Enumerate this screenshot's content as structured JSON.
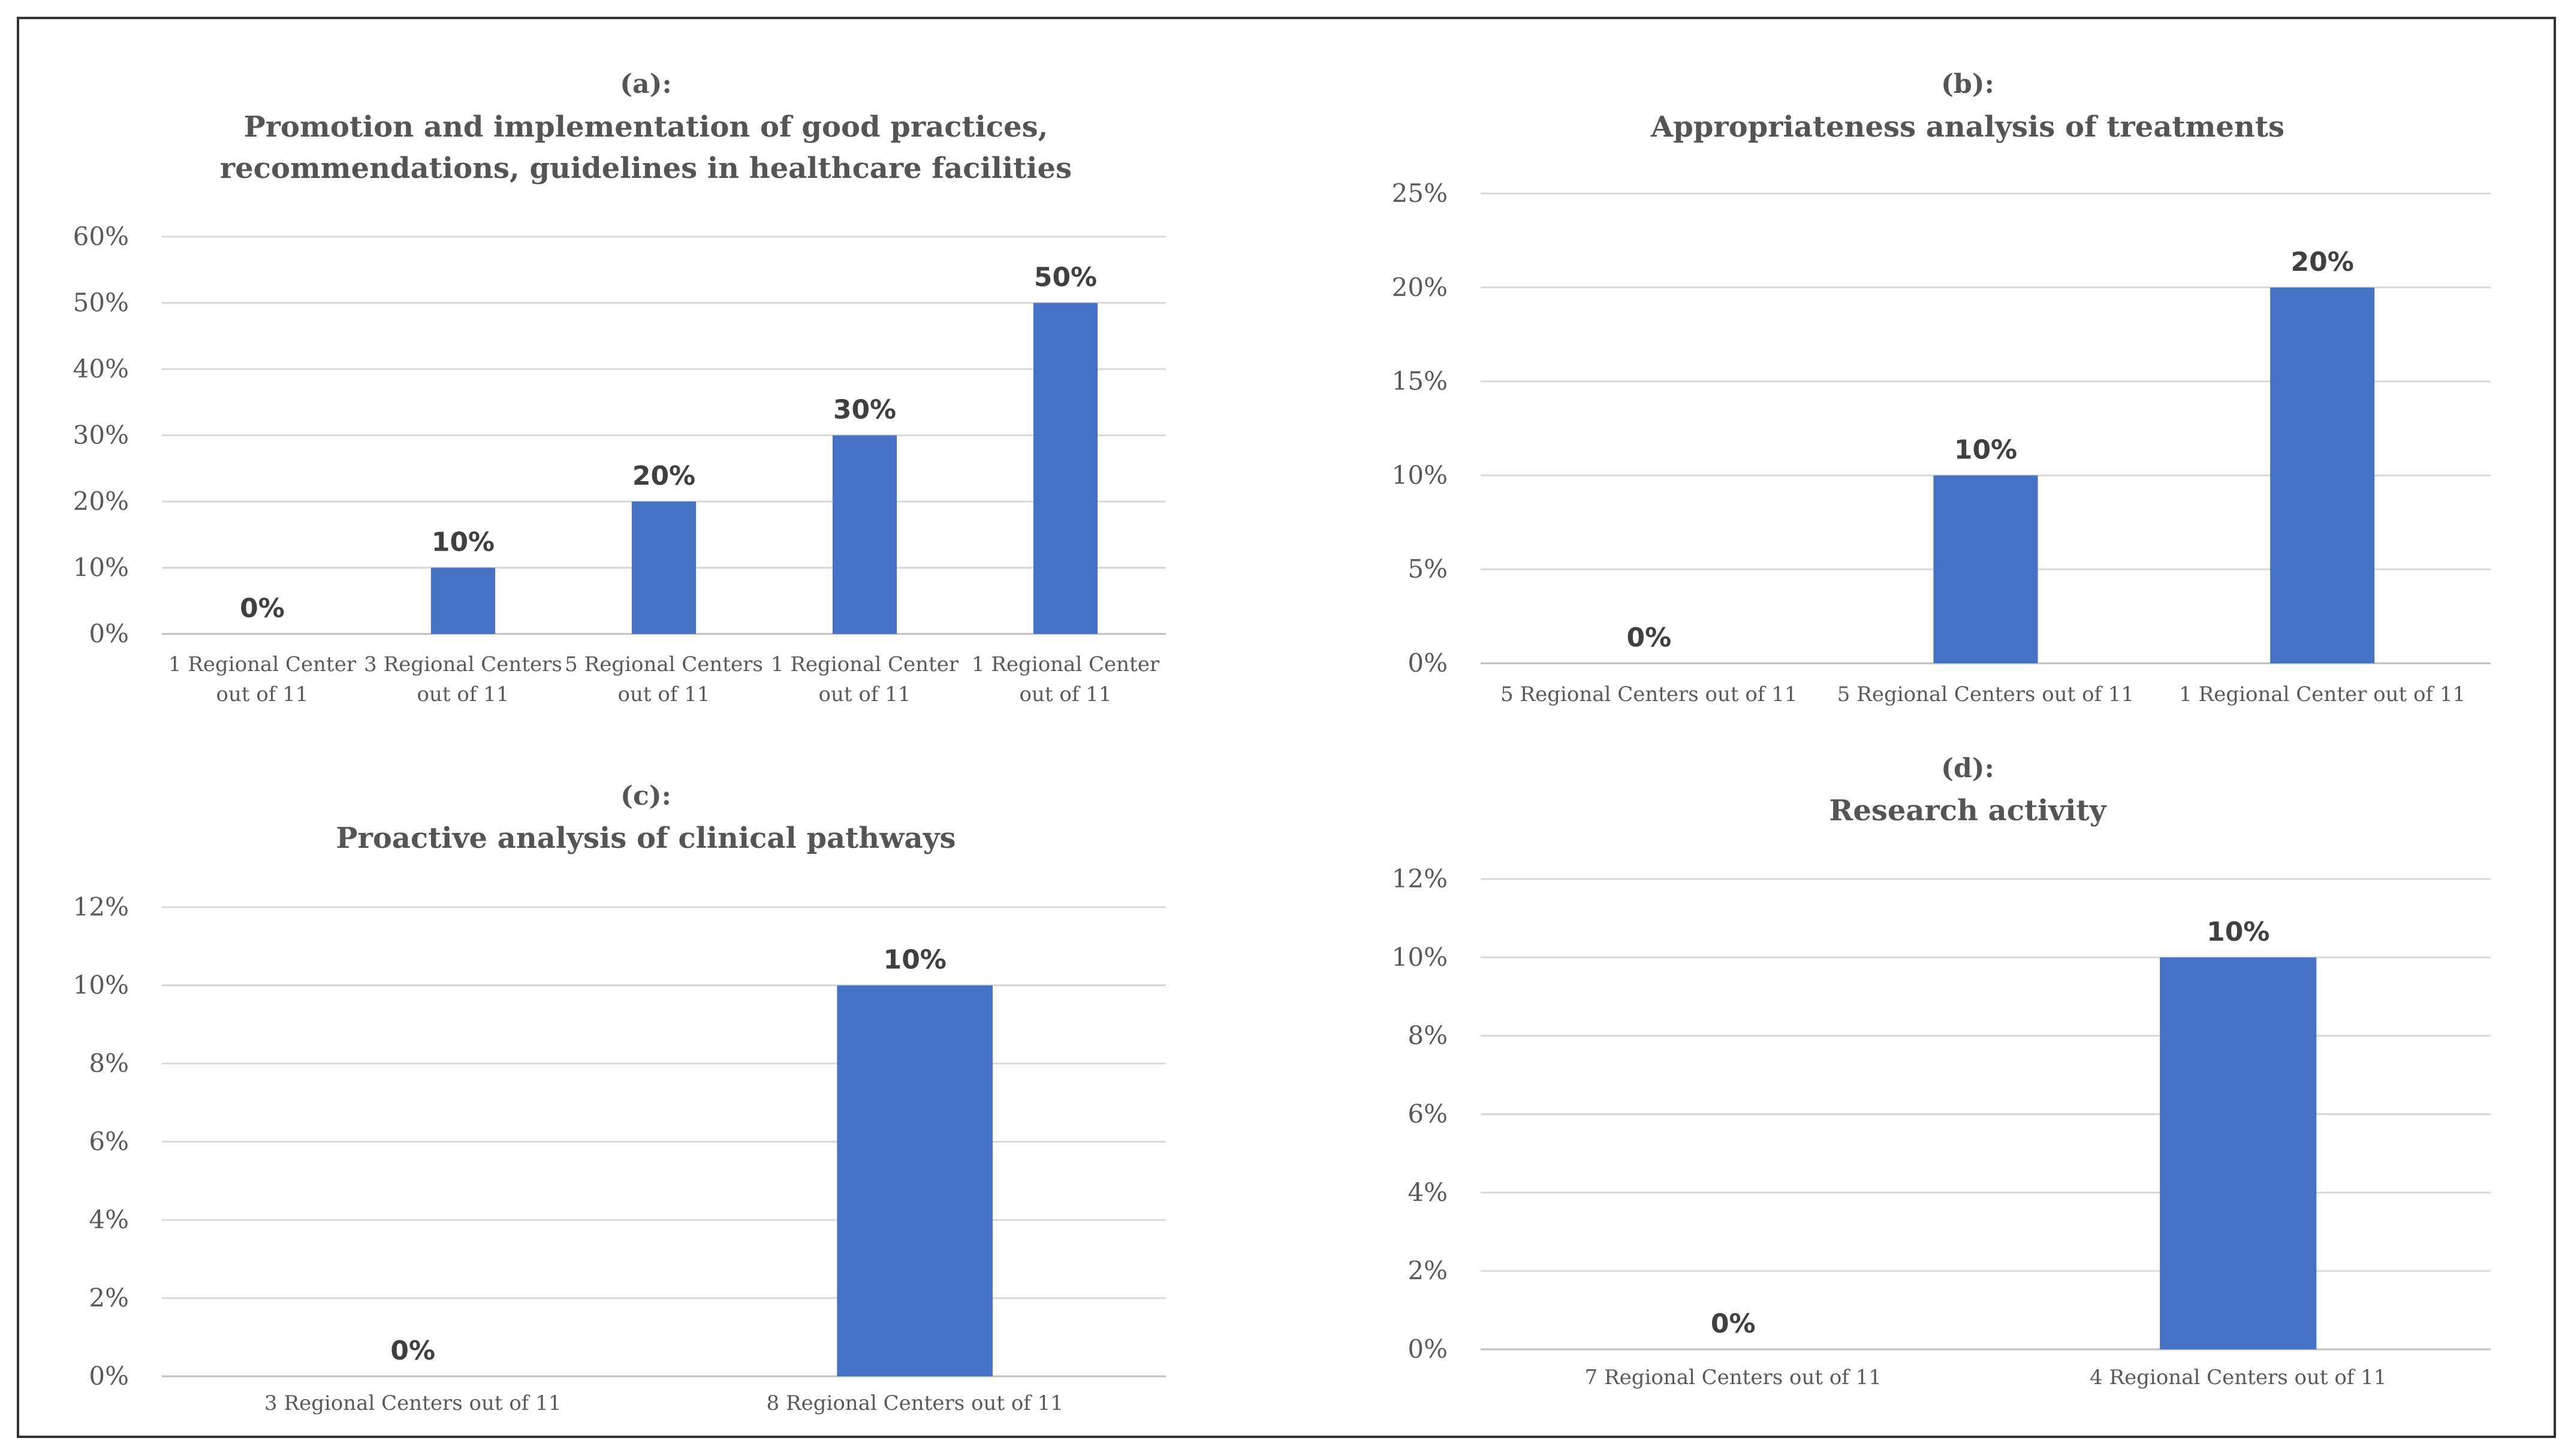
{
  "chart_data": [
    {
      "id": "a",
      "type": "bar",
      "panel_label": "(a):",
      "title": [
        "Promotion and implementation of good practices,",
        "recommendations, guidelines in healthcare facilities"
      ],
      "categories": [
        [
          "1 Regional Center",
          "out of 11"
        ],
        [
          "3 Regional Centers",
          "out of 11"
        ],
        [
          "5 Regional Centers",
          "out of 11"
        ],
        [
          "1 Regional Center",
          "out of 11"
        ],
        [
          "1 Regional Center",
          "out of 11"
        ]
      ],
      "values": [
        0,
        10,
        20,
        30,
        50
      ],
      "value_labels": [
        "0%",
        "10%",
        "20%",
        "30%",
        "50%"
      ],
      "yticks": [
        0,
        10,
        20,
        30,
        40,
        50,
        60
      ],
      "ytick_labels": [
        "0%",
        "10%",
        "20%",
        "30%",
        "40%",
        "50%",
        "60%"
      ],
      "ylim": [
        0,
        60
      ],
      "bar_color": "#4472C4",
      "xlabel": "",
      "ylabel": ""
    },
    {
      "id": "b",
      "type": "bar",
      "panel_label": "(b):",
      "title": [
        "Appropriateness analysis of treatments"
      ],
      "categories": [
        [
          "5 Regional Centers out of 11"
        ],
        [
          "5 Regional Centers out of 11"
        ],
        [
          "1 Regional Center out of 11"
        ]
      ],
      "values": [
        0,
        10,
        20
      ],
      "value_labels": [
        "0%",
        "10%",
        "20%"
      ],
      "yticks": [
        0,
        5,
        10,
        15,
        20,
        25
      ],
      "ytick_labels": [
        "0%",
        "5%",
        "10%",
        "15%",
        "20%",
        "25%"
      ],
      "ylim": [
        0,
        25
      ],
      "bar_color": "#4472C4",
      "xlabel": "",
      "ylabel": ""
    },
    {
      "id": "c",
      "type": "bar",
      "panel_label": "(c):",
      "title": [
        "Proactive analysis of clinical pathways"
      ],
      "categories": [
        [
          "3 Regional Centers out of 11"
        ],
        [
          "8 Regional Centers out of 11"
        ]
      ],
      "values": [
        0,
        10
      ],
      "value_labels": [
        "0%",
        "10%"
      ],
      "yticks": [
        0,
        2,
        4,
        6,
        8,
        10,
        12
      ],
      "ytick_labels": [
        "0%",
        "2%",
        "4%",
        "6%",
        "8%",
        "10%",
        "12%"
      ],
      "ylim": [
        0,
        12
      ],
      "bar_color": "#4472C4",
      "xlabel": "",
      "ylabel": ""
    },
    {
      "id": "d",
      "type": "bar",
      "panel_label": "(d):",
      "title": [
        "Research activity"
      ],
      "categories": [
        [
          "7 Regional Centers out of 11"
        ],
        [
          "4 Regional Centers out of 11"
        ]
      ],
      "values": [
        0,
        10
      ],
      "value_labels": [
        "0%",
        "10%"
      ],
      "yticks": [
        0,
        2,
        4,
        6,
        8,
        10,
        12
      ],
      "ytick_labels": [
        "0%",
        "2%",
        "4%",
        "6%",
        "8%",
        "10%",
        "12%"
      ],
      "ylim": [
        0,
        12
      ],
      "bar_color": "#4472C4",
      "xlabel": "",
      "ylabel": ""
    }
  ]
}
